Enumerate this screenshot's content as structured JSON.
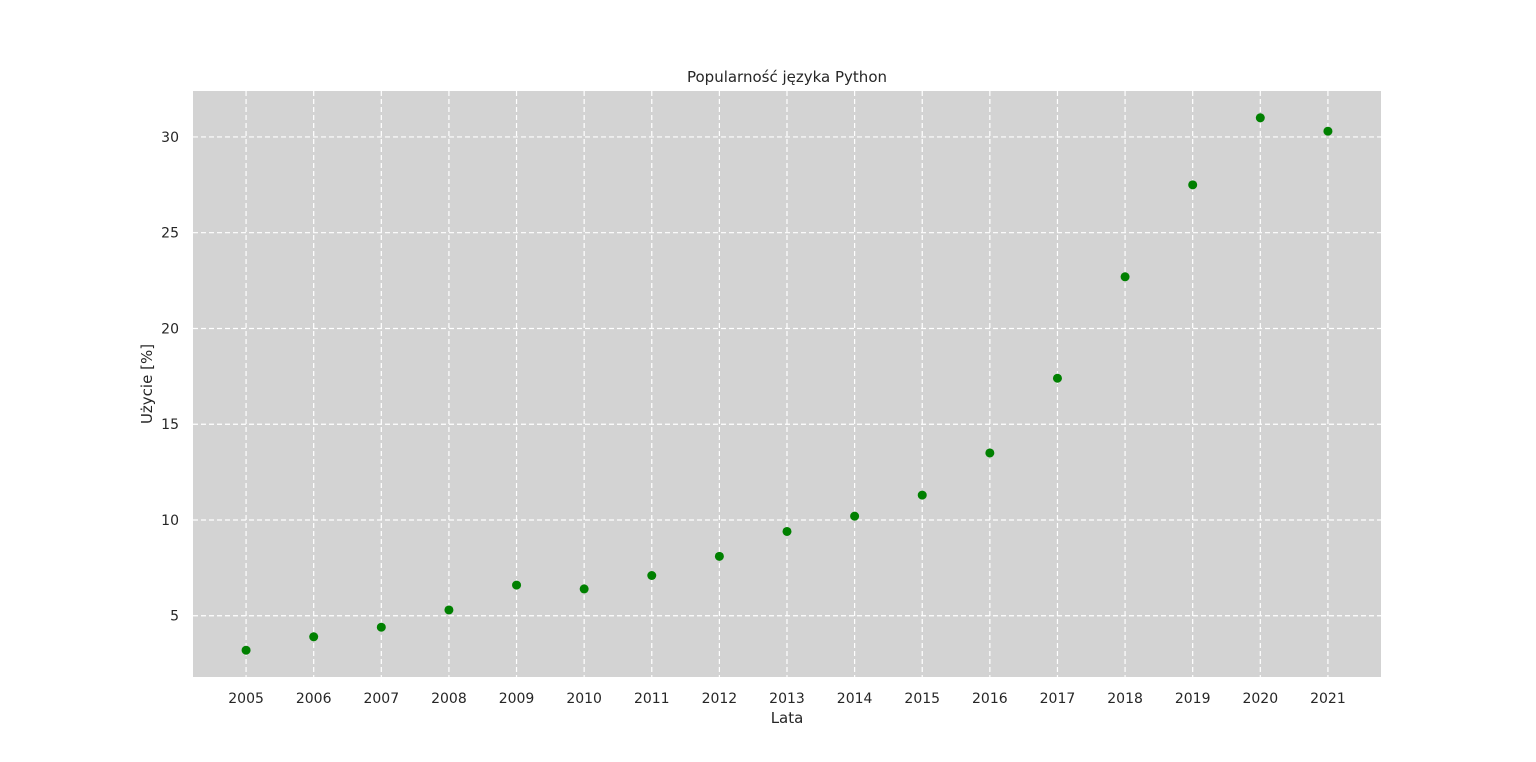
{
  "chart_data": {
    "type": "scatter",
    "title": "Popularność języka Python",
    "xlabel": "Lata",
    "ylabel": "Użycie [%]",
    "x": [
      2005,
      2006,
      2007,
      2008,
      2009,
      2010,
      2011,
      2012,
      2013,
      2014,
      2015,
      2016,
      2017,
      2018,
      2019,
      2020,
      2021
    ],
    "y": [
      3.2,
      3.9,
      4.4,
      5.3,
      6.6,
      6.4,
      7.1,
      8.1,
      9.4,
      10.2,
      11.3,
      13.5,
      17.4,
      22.7,
      27.5,
      31.0,
      30.3
    ],
    "ylim": [
      1.8,
      32.4
    ],
    "yticks": [
      5,
      10,
      15,
      20,
      25,
      30
    ],
    "grid": true,
    "colors": {
      "background": "#ffffff",
      "plot_area": "#d3d3d3",
      "grid": "#ffffff",
      "marker": "#008000"
    }
  }
}
